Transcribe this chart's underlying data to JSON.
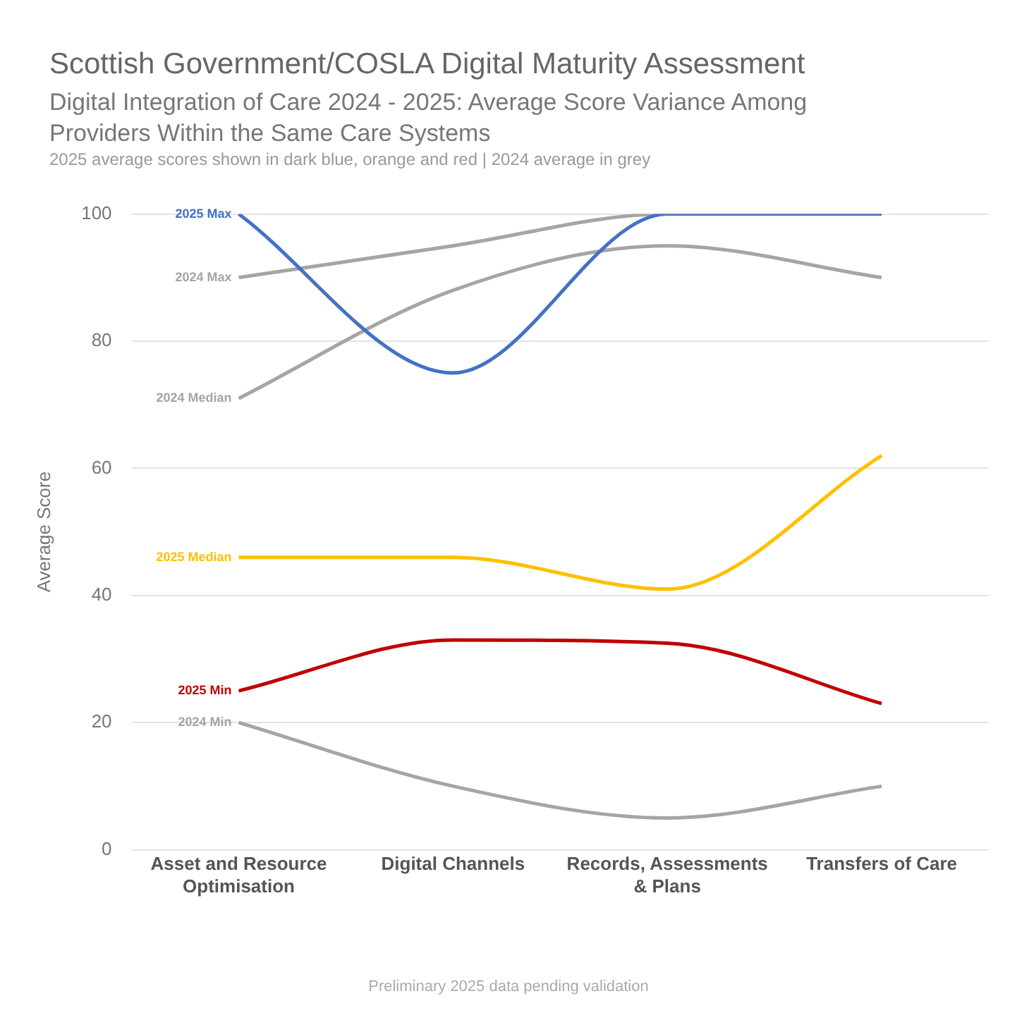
{
  "chart_data": {
    "type": "line",
    "title": "Scottish Government/COSLA Digital Maturity Assessment",
    "subtitle": "Digital Integration of Care 2024 - 2025: Average Score Variance Among Providers Within the Same Care Systems",
    "ylabel": "Average Score",
    "annotations": [
      "2025 average scores shown in dark blue, orange and red | 2024 average in grey",
      "Preliminary 2025 data pending validation"
    ],
    "categories": [
      "Asset and Resource Optimisation",
      "Digital Channels",
      "Records, Assessments & Plans",
      "Transfers of Care"
    ],
    "series": [
      {
        "name": "2025 Max",
        "color": "#4472c4",
        "values": [
          100,
          75,
          100,
          100
        ]
      },
      {
        "name": "2024 Max",
        "color": "#a5a5a5",
        "values": [
          90,
          95,
          100,
          100
        ]
      },
      {
        "name": "2024 Median",
        "color": "#a5a5a5",
        "values": [
          71,
          88,
          95,
          90
        ]
      },
      {
        "name": "2025 Median",
        "color": "#ffc000",
        "values": [
          46,
          46,
          41,
          62
        ]
      },
      {
        "name": "2025 Min",
        "color": "#c00000",
        "values": [
          25,
          33,
          32.5,
          23
        ]
      },
      {
        "name": "2024 Min",
        "color": "#a5a5a5",
        "values": [
          20,
          10,
          5,
          10
        ]
      }
    ],
    "ylim": [
      0,
      100
    ],
    "yticks": [
      0,
      20,
      40,
      60,
      80,
      100
    ],
    "grid": "y",
    "legend": false,
    "marker": "none",
    "line_style": "solid"
  }
}
